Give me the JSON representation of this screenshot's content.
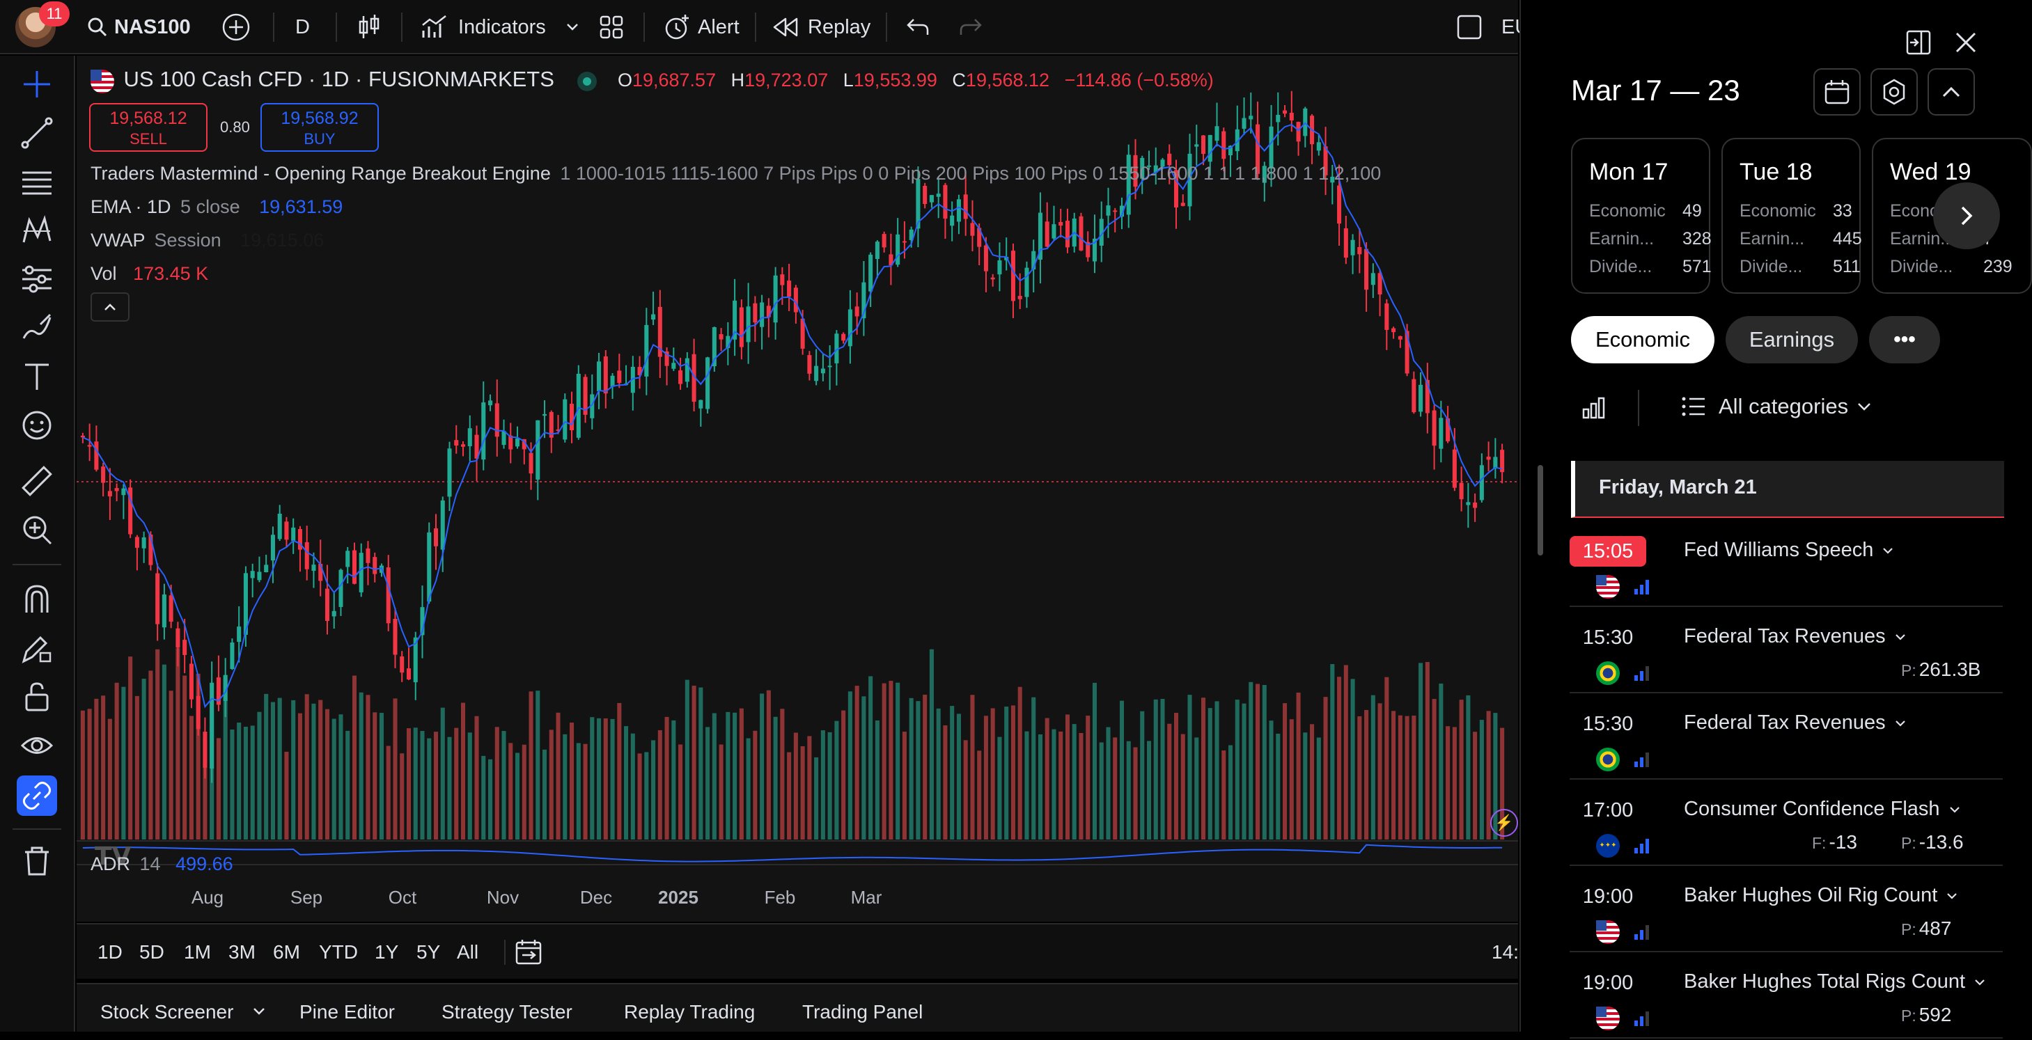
{
  "topbar": {
    "badge_count": "11",
    "symbol": "NAS100",
    "interval": "D",
    "indicators_label": "Indicators",
    "alert_label": "Alert",
    "replay_label": "Replay",
    "cut_text": "EU"
  },
  "chart": {
    "title": "US 100 Cash CFD · 1D · FUSIONMARKETS",
    "ohlc": {
      "o_key": "O",
      "o": "19,687.57",
      "h_key": "H",
      "h": "19,723.07",
      "l_key": "L",
      "l": "19,553.99",
      "c_key": "C",
      "c": "19,568.12",
      "change": "−114.86 (−0.58%)"
    },
    "sell": {
      "price": "19,568.12",
      "label": "SELL"
    },
    "spread": "0.80",
    "buy": {
      "price": "19,568.92",
      "label": "BUY"
    },
    "indicator_orb": {
      "name": "Traders Mastermind - Opening Range Breakout Engine",
      "params": "1 1000-1015 1115-1600 7 Pips Pips 0 0 Pips 200 Pips 100 Pips 0 1550-1600 1 1 1 1,800 1 1 2,100"
    },
    "indicator_ema": {
      "name": "EMA · 1D",
      "params": "5 close",
      "value": "19,631.59"
    },
    "indicator_vwap": {
      "name": "VWAP",
      "params": "Session",
      "value": "19,615.06"
    },
    "indicator_vol": {
      "name": "Vol",
      "value": "173.45 K"
    },
    "adr": {
      "name": "ADR",
      "params": "14",
      "value": "499.66"
    },
    "xaxis_labels": [
      "Aug",
      "Sep",
      "Oct",
      "Nov",
      "Dec",
      "2025",
      "Feb",
      "Mar"
    ],
    "time_cut": "14:",
    "colors": {
      "up": "#22ab94",
      "down": "#f23645",
      "ema": "#2962ff",
      "up_vol": "#1e6b5e",
      "down_vol": "#8e3434"
    }
  },
  "chart_data": {
    "type": "candlestick",
    "title": "US 100 Cash CFD · 1D · FUSIONMARKETS",
    "x_range": [
      "Jul 2024",
      "Mar 21 2025"
    ],
    "y_range_approx": [
      17450,
      22200
    ],
    "last_close": 19568.12,
    "ema_5": 19631.59,
    "volume_last": "173.45 K",
    "adr_14": 499.66,
    "close_path": [
      19800,
      19400,
      18600,
      17800,
      18900,
      19300,
      18600,
      19100,
      18300,
      19600,
      19900,
      19700,
      20000,
      20200,
      20450,
      20100,
      20500,
      20800,
      20300,
      20600,
      21100,
      21500,
      21000,
      20800,
      21300,
      21000,
      21600,
      21400,
      21800,
      21700,
      21900,
      21200,
      20600,
      20000,
      19500,
      19568
    ],
    "volume_path": [
      220,
      260,
      300,
      210,
      240,
      190,
      200,
      230,
      180,
      210,
      170,
      200,
      190,
      210,
      180,
      220,
      190,
      200,
      170,
      210,
      230,
      260,
      190,
      220,
      200,
      210,
      180,
      200,
      190,
      230,
      210,
      240,
      260,
      240,
      230,
      173
    ]
  },
  "timeframes": [
    "1D",
    "5D",
    "1M",
    "3M",
    "6M",
    "YTD",
    "1Y",
    "5Y",
    "All"
  ],
  "bottom_tabs": [
    "Stock Screener",
    "Pine Editor",
    "Strategy Tester",
    "Replay Trading",
    "Trading Panel"
  ],
  "calendar": {
    "range": "Mar 17 — 23",
    "days": [
      {
        "name": "Mon 17",
        "economic_label": "Economic",
        "economic": "49",
        "earnings_label": "Earnin...",
        "earnings": "328",
        "dividends_label": "Divide...",
        "dividends": "571"
      },
      {
        "name": "Tue 18",
        "economic_label": "Economic",
        "economic": "33",
        "earnings_label": "Earnin...",
        "earnings": "445",
        "dividends_label": "Divide...",
        "dividends": "511"
      },
      {
        "name": "Wed 19",
        "economic_label": "Econo",
        "economic": "",
        "earnings_label": "Earnin...",
        "earnings": "7",
        "dividends_label": "Divide...",
        "dividends": "239"
      }
    ],
    "filters": {
      "economic": "Economic",
      "earnings": "Earnings",
      "more": "•••"
    },
    "categories_label": "All categories",
    "date_header": "Friday, March 21",
    "events": [
      {
        "time": "15:05",
        "title": "Fed Williams Speech",
        "flag": "us",
        "f_key": "",
        "f": "",
        "p_key": "",
        "p": ""
      },
      {
        "time": "15:30",
        "title": "Federal Tax Revenues",
        "flag": "br",
        "f_key": "",
        "f": "",
        "p_key": "P:",
        "p": "261.3B"
      },
      {
        "time": "15:30",
        "title": "Federal Tax Revenues",
        "flag": "br",
        "f_key": "",
        "f": "",
        "p_key": "",
        "p": ""
      },
      {
        "time": "17:00",
        "title": "Consumer Confidence Flash",
        "flag": "eu",
        "f_key": "F:",
        "f": "-13",
        "p_key": "P:",
        "p": "-13.6"
      },
      {
        "time": "19:00",
        "title": "Baker Hughes Oil Rig Count",
        "flag": "us",
        "f_key": "",
        "f": "",
        "p_key": "P:",
        "p": "487"
      },
      {
        "time": "19:00",
        "title": "Baker Hughes Total Rigs Count",
        "flag": "us",
        "f_key": "",
        "f": "",
        "p_key": "P:",
        "p": "592"
      }
    ]
  }
}
